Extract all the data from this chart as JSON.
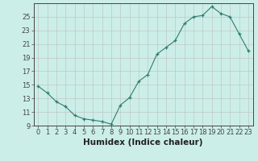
{
  "x": [
    0,
    1,
    2,
    3,
    4,
    5,
    6,
    7,
    8,
    9,
    10,
    11,
    12,
    13,
    14,
    15,
    16,
    17,
    18,
    19,
    20,
    21,
    22,
    23
  ],
  "y": [
    14.8,
    13.8,
    12.5,
    11.8,
    10.5,
    10.0,
    9.8,
    9.6,
    9.2,
    12.0,
    13.1,
    15.5,
    16.5,
    19.5,
    20.5,
    21.5,
    24.0,
    25.0,
    25.2,
    26.5,
    25.5,
    25.0,
    22.5,
    20.0
  ],
  "xlabel": "Humidex (Indice chaleur)",
  "ylabel": "",
  "title": "",
  "line_color": "#2e7d6e",
  "marker": "+",
  "bg_color": "#cceee8",
  "grid_color": "#c0c8c4",
  "axis_color": "#444444",
  "ylim": [
    9,
    27
  ],
  "xlim": [
    -0.5,
    23.5
  ],
  "yticks": [
    9,
    11,
    13,
    15,
    17,
    19,
    21,
    23,
    25
  ],
  "xticks": [
    0,
    1,
    2,
    3,
    4,
    5,
    6,
    7,
    8,
    9,
    10,
    11,
    12,
    13,
    14,
    15,
    16,
    17,
    18,
    19,
    20,
    21,
    22,
    23
  ],
  "tick_fontsize": 6,
  "label_fontsize": 7.5
}
